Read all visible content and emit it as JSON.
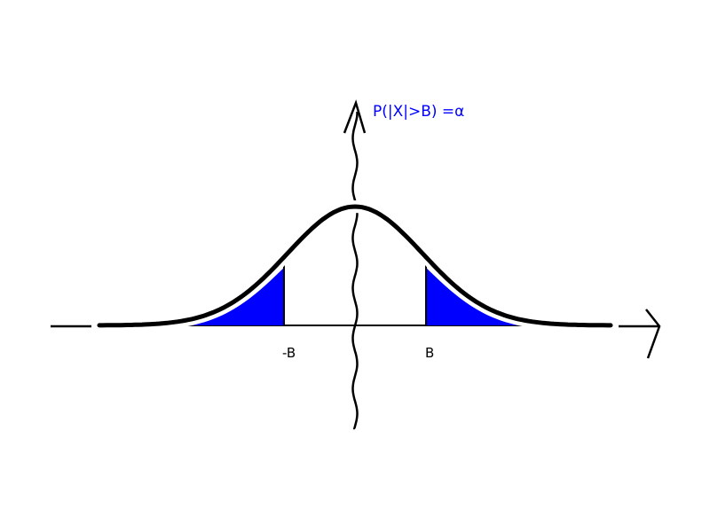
{
  "diagram": {
    "annotation": "P(|X|>B) =α",
    "left_threshold_label": "-B",
    "right_threshold_label": "B",
    "colors": {
      "fill": "#0000ff",
      "line": "#000000",
      "annotation": "#0000ff"
    },
    "curve": "normal distribution, two-tailed shaded regions"
  }
}
